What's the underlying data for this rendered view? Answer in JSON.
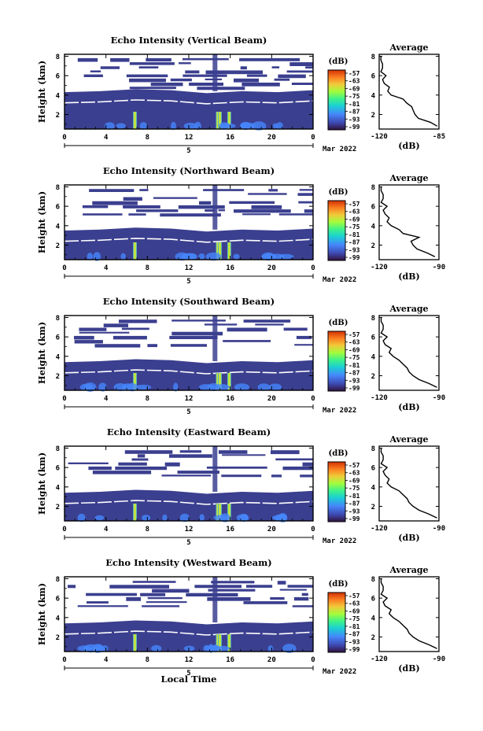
{
  "chart_data": [
    {
      "type": "heatmap",
      "title": "Echo Intensity (Vertical Beam)",
      "xlabel": "",
      "ylabel": "Height (km)",
      "xticks": [
        "0",
        "4",
        "8",
        "12",
        "16",
        "20",
        "0"
      ],
      "xlim": [
        0,
        24
      ],
      "yticks": [
        "2",
        "4",
        "6",
        "8"
      ],
      "ylim": [
        0.5,
        8.2
      ],
      "date_label": "5",
      "month_label": "Mar 2022",
      "colorbar": {
        "unit": "(dB)",
        "ticks": [
          "-57",
          "-63",
          "-69",
          "-75",
          "-81",
          "-87",
          "-93",
          "-99"
        ]
      },
      "cloud_band_tops_km": [
        3.4,
        3.5,
        3.7,
        3.6,
        3.3,
        3.5,
        3.4,
        3.6
      ],
      "bright_streaks_hour": [
        6.8,
        14.8,
        15.0,
        15.9
      ],
      "profile": {
        "title": "Average",
        "xlabel": "(dB)",
        "xticks": [
          "-120",
          "-85"
        ],
        "xlim": [
          -120,
          -85
        ],
        "yticks": [
          "2",
          "4",
          "6",
          "8"
        ],
        "ylim": [
          0.5,
          8.2
        ],
        "height": [
          0.8,
          1.2,
          1.6,
          2.0,
          2.4,
          2.8,
          3.2,
          3.6,
          4.0,
          4.4,
          4.8,
          5.2,
          5.6,
          6.0,
          6.4,
          6.8,
          7.2,
          7.6,
          8.0
        ],
        "value": [
          -86,
          -90,
          -97,
          -99,
          -100,
          -101,
          -104,
          -106,
          -113,
          -115,
          -114,
          -117,
          -118,
          -116,
          -119,
          -118,
          -118,
          -119,
          -119
        ]
      }
    },
    {
      "type": "heatmap",
      "title": "Echo Intensity (Northward Beam)",
      "xlabel": "",
      "ylabel": "Height (km)",
      "xticks": [
        "0",
        "4",
        "8",
        "12",
        "16",
        "20",
        "0"
      ],
      "xlim": [
        0,
        24
      ],
      "yticks": [
        "2",
        "4",
        "6",
        "8"
      ],
      "ylim": [
        0.5,
        8.2
      ],
      "date_label": "5",
      "month_label": "Mar 2022",
      "colorbar": {
        "unit": "(dB)",
        "ticks": [
          "-57",
          "-63",
          "-69",
          "-75",
          "-81",
          "-87",
          "-93",
          "-99"
        ]
      },
      "cloud_band_tops_km": [
        2.6,
        2.7,
        2.9,
        2.8,
        2.5,
        2.7,
        2.6,
        2.8
      ],
      "bright_streaks_hour": [
        6.8,
        14.8,
        15.0,
        15.9
      ],
      "profile": {
        "title": "Average",
        "xlabel": "(dB)",
        "xticks": [
          "-120",
          "-90"
        ],
        "xlim": [
          -120,
          -90
        ],
        "yticks": [
          "2",
          "4",
          "6",
          "8"
        ],
        "ylim": [
          0.5,
          8.2
        ],
        "height": [
          0.8,
          1.2,
          1.6,
          2.0,
          2.4,
          2.8,
          3.2,
          3.6,
          4.0,
          4.4,
          4.8,
          5.2,
          5.6,
          6.0,
          6.4,
          6.8,
          7.2,
          7.6,
          8.0
        ],
        "value": [
          -92,
          -96,
          -101,
          -103,
          -104,
          -100,
          -108,
          -110,
          -114,
          -116,
          -115,
          -117,
          -118,
          -116,
          -119,
          -118,
          -118,
          -119,
          -119
        ]
      }
    },
    {
      "type": "heatmap",
      "title": "Echo Intensity (Southward Beam)",
      "xlabel": "",
      "ylabel": "Height (km)",
      "xticks": [
        "0",
        "4",
        "8",
        "12",
        "16",
        "20",
        "0"
      ],
      "xlim": [
        0,
        24
      ],
      "yticks": [
        "2",
        "4",
        "6",
        "8"
      ],
      "ylim": [
        0.5,
        8.2
      ],
      "date_label": "5",
      "month_label": "Mar 2022",
      "colorbar": {
        "unit": "(dB)",
        "ticks": [
          "-57",
          "-63",
          "-69",
          "-75",
          "-81",
          "-87",
          "-93",
          "-99"
        ]
      },
      "cloud_band_tops_km": [
        2.5,
        2.6,
        2.8,
        2.7,
        2.4,
        2.6,
        2.5,
        2.7
      ],
      "bright_streaks_hour": [
        6.8,
        14.8,
        15.0,
        15.9
      ],
      "profile": {
        "title": "Average",
        "xlabel": "(dB)",
        "xticks": [
          "-120",
          "-90"
        ],
        "xlim": [
          -120,
          -90
        ],
        "yticks": [
          "2",
          "4",
          "6",
          "8"
        ],
        "ylim": [
          0.5,
          8.2
        ],
        "height": [
          0.8,
          1.2,
          1.6,
          2.0,
          2.4,
          2.8,
          3.2,
          3.6,
          4.0,
          4.4,
          4.8,
          5.2,
          5.6,
          6.0,
          6.4,
          6.8,
          7.2,
          7.6,
          8.0
        ],
        "value": [
          -91,
          -95,
          -100,
          -103,
          -105,
          -106,
          -108,
          -110,
          -113,
          -115,
          -114,
          -117,
          -118,
          -116,
          -119,
          -118,
          -118,
          -119,
          -119
        ]
      }
    },
    {
      "type": "heatmap",
      "title": "Echo Intensity (Eastward Beam)",
      "xlabel": "",
      "ylabel": "Height (km)",
      "xticks": [
        "0",
        "4",
        "8",
        "12",
        "16",
        "20",
        "0"
      ],
      "xlim": [
        0,
        24
      ],
      "yticks": [
        "2",
        "4",
        "6",
        "8"
      ],
      "ylim": [
        0.5,
        8.2
      ],
      "date_label": "5",
      "month_label": "Mar 2022",
      "colorbar": {
        "unit": "(dB)",
        "ticks": [
          "-57",
          "-63",
          "-69",
          "-75",
          "-81",
          "-87",
          "-93",
          "-99"
        ]
      },
      "cloud_band_tops_km": [
        2.5,
        2.6,
        2.8,
        2.7,
        2.4,
        2.6,
        2.5,
        2.7
      ],
      "bright_streaks_hour": [
        6.8,
        14.8,
        15.0,
        15.9
      ],
      "profile": {
        "title": "Average",
        "xlabel": "(dB)",
        "xticks": [
          "-120",
          "-90"
        ],
        "xlim": [
          -120,
          -90
        ],
        "yticks": [
          "2",
          "4",
          "6",
          "8"
        ],
        "ylim": [
          0.5,
          8.2
        ],
        "height": [
          0.8,
          1.2,
          1.6,
          2.0,
          2.4,
          2.8,
          3.2,
          3.6,
          4.0,
          4.4,
          4.8,
          5.2,
          5.6,
          6.0,
          6.4,
          6.8,
          7.2,
          7.6,
          8.0
        ],
        "value": [
          -91,
          -95,
          -100,
          -103,
          -105,
          -106,
          -108,
          -110,
          -114,
          -116,
          -115,
          -117,
          -118,
          -116,
          -119,
          -118,
          -118,
          -119,
          -119
        ]
      }
    },
    {
      "type": "heatmap",
      "title": "Echo Intensity (Westward Beam)",
      "xlabel": "Local Time",
      "ylabel": "Height (km)",
      "xticks": [
        "0",
        "4",
        "8",
        "12",
        "16",
        "20",
        "0"
      ],
      "xlim": [
        0,
        24
      ],
      "yticks": [
        "2",
        "4",
        "6",
        "8"
      ],
      "ylim": [
        0.5,
        8.2
      ],
      "date_label": "5",
      "month_label": "Mar 2022",
      "colorbar": {
        "unit": "(dB)",
        "ticks": [
          "-57",
          "-63",
          "-69",
          "-75",
          "-81",
          "-87",
          "-93",
          "-99"
        ]
      },
      "cloud_band_tops_km": [
        2.5,
        2.6,
        2.8,
        2.7,
        2.4,
        2.6,
        2.5,
        2.7
      ],
      "bright_streaks_hour": [
        6.8,
        14.8,
        15.0,
        15.9
      ],
      "profile": {
        "title": "Average",
        "xlabel": "(dB)",
        "xticks": [
          "-120",
          "-90"
        ],
        "xlim": [
          -120,
          -90
        ],
        "yticks": [
          "2",
          "4",
          "6",
          "8"
        ],
        "ylim": [
          0.5,
          8.2
        ],
        "height": [
          0.8,
          1.2,
          1.6,
          2.0,
          2.4,
          2.8,
          3.2,
          3.6,
          4.0,
          4.4,
          4.8,
          5.2,
          5.6,
          6.0,
          6.4,
          6.8,
          7.2,
          7.6,
          8.0
        ],
        "value": [
          -91,
          -95,
          -100,
          -103,
          -105,
          -106,
          -108,
          -110,
          -113,
          -115,
          -114,
          -117,
          -118,
          -116,
          -119,
          -118,
          -118,
          -119,
          -119
        ]
      }
    }
  ],
  "colors": {
    "background_echo": "#3b3f8f",
    "colormap": [
      "#30123b",
      "#3e49b0",
      "#4686fb",
      "#1bcfd4",
      "#3ef28a",
      "#a2fc3c",
      "#f0cb3a",
      "#fb7e21",
      "#d23105",
      "#7a0403"
    ]
  }
}
